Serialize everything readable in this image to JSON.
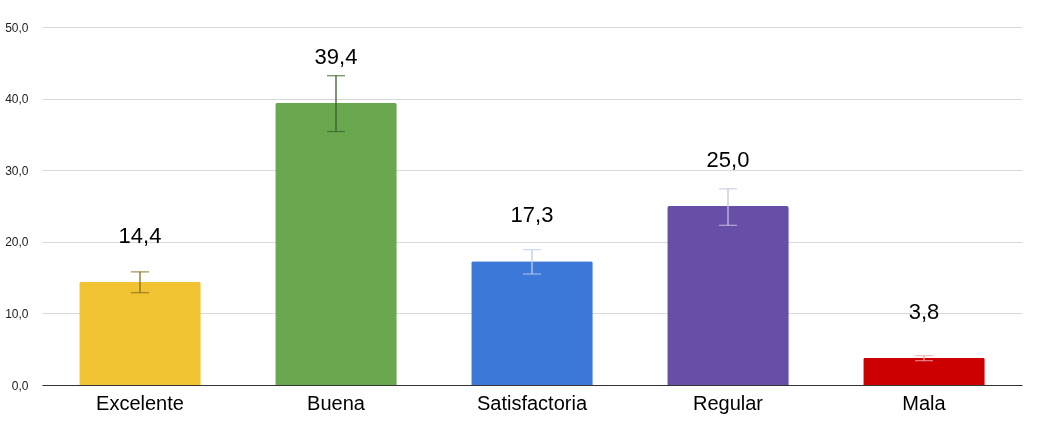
{
  "chart_data": {
    "type": "bar",
    "categories": [
      "Excelente",
      "Buena",
      "Satisfactoria",
      "Regular",
      "Mala"
    ],
    "values": [
      14.4,
      39.4,
      17.3,
      25.0,
      3.8
    ],
    "value_labels": [
      "14,4",
      "39,4",
      "17,3",
      "25,0",
      "3,8"
    ],
    "colors": [
      "#f1c232",
      "#6aa84f",
      "#3c78d8",
      "#674ea7",
      "#cc0000"
    ],
    "errors": [
      [
        12.9,
        15.8
      ],
      [
        35.4,
        43.2
      ],
      [
        15.5,
        18.9
      ],
      [
        22.3,
        27.4
      ],
      [
        3.4,
        4.1
      ]
    ],
    "ylim": [
      0,
      50
    ],
    "yticks": [
      {
        "value": 0,
        "label": "0,0"
      },
      {
        "value": 10,
        "label": "10,0"
      },
      {
        "value": 20,
        "label": "20,0"
      },
      {
        "value": 30,
        "label": "30,0"
      },
      {
        "value": 40,
        "label": "40,0"
      },
      {
        "value": 50,
        "label": "50,0"
      }
    ],
    "grid": "y"
  }
}
